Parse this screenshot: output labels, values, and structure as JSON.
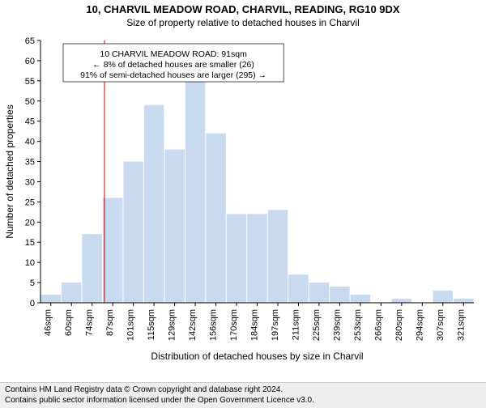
{
  "title_line1": "10, CHARVIL MEADOW ROAD, CHARVIL, READING, RG10 9DX",
  "title_line2": "Size of property relative to detached houses in Charvil",
  "chart": {
    "type": "histogram",
    "bar_color": "#c9d9ef",
    "bar_border": "#a9c1e6",
    "background": "#ffffff",
    "axis_color": "#000000",
    "ylabel": "Number of detached properties",
    "xlabel": "Distribution of detached houses by size in Charvil",
    "ylim": [
      0,
      65
    ],
    "ytick_step": 5,
    "x_categories": [
      "46sqm",
      "60sqm",
      "74sqm",
      "87sqm",
      "101sqm",
      "115sqm",
      "129sqm",
      "142sqm",
      "156sqm",
      "170sqm",
      "184sqm",
      "197sqm",
      "211sqm",
      "225sqm",
      "239sqm",
      "253sqm",
      "266sqm",
      "280sqm",
      "294sqm",
      "307sqm",
      "321sqm"
    ],
    "bar_values": [
      2,
      5,
      17,
      26,
      35,
      49,
      38,
      55,
      42,
      22,
      22,
      23,
      7,
      5,
      4,
      2,
      0,
      1,
      0,
      3,
      1
    ],
    "marker_index_fractional": 3.1,
    "marker_color": "#cc0000",
    "annotation": {
      "lines": [
        "10 CHARVIL MEADOW ROAD: 91sqm",
        "← 8% of detached houses are smaller (26)",
        "91% of semi-detached houses are larger (295) →"
      ],
      "border": "#000000",
      "bg": "#ffffff",
      "fontsize": 10.5
    },
    "label_fontsize": 12,
    "tick_fontsize": 11
  },
  "footer": {
    "line1": "Contains HM Land Registry data © Crown copyright and database right 2024.",
    "line2": "Contains public sector information licensed under the Open Government Licence v3.0.",
    "bg": "#eeeeee",
    "fontsize": 10
  }
}
